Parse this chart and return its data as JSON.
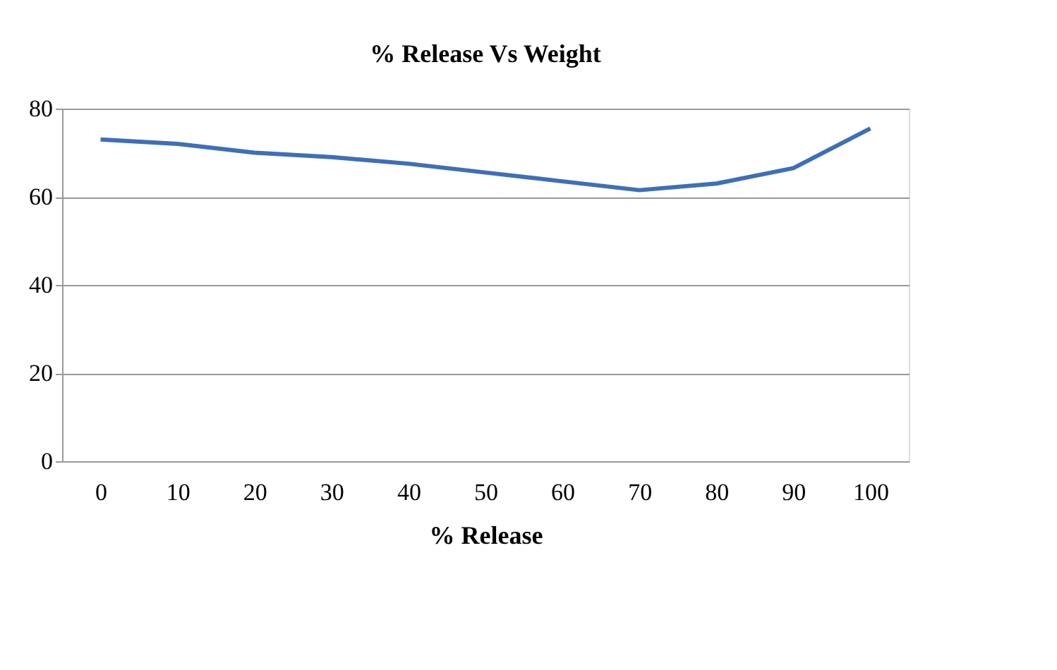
{
  "chart_data": {
    "type": "line",
    "title": "% Release Vs Weight",
    "xlabel": "% Release",
    "categories": [
      "0",
      "10",
      "20",
      "30",
      "40",
      "50",
      "60",
      "70",
      "80",
      "90",
      "100"
    ],
    "series": [
      {
        "color": "#3e6fb7",
        "values": [
          73,
          72,
          70,
          69,
          67.5,
          65.5,
          63.5,
          61.5,
          63,
          66.5,
          75.5
        ]
      }
    ],
    "ylim": [
      0,
      80
    ],
    "yticks": [
      0,
      20,
      40,
      60,
      80
    ],
    "grid": "y",
    "marker": "none",
    "line_style": "solid"
  }
}
